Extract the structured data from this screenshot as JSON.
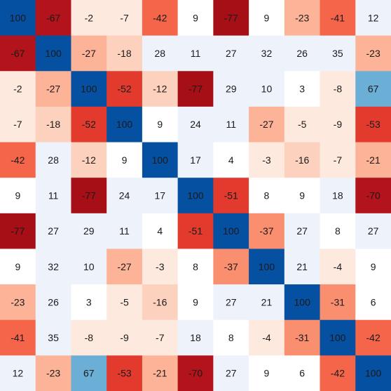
{
  "chart_data": {
    "type": "heatmap",
    "title": "",
    "xlabel": "",
    "ylabel": "",
    "value_range": [
      -100,
      100
    ],
    "colormap": "RdBu",
    "values": [
      [
        100,
        -67,
        -2,
        -7,
        -42,
        9,
        -77,
        9,
        -23,
        -41,
        12
      ],
      [
        -67,
        100,
        -27,
        -18,
        28,
        11,
        27,
        32,
        26,
        35,
        -23
      ],
      [
        -2,
        -27,
        100,
        -52,
        -12,
        -77,
        29,
        10,
        3,
        -8,
        67
      ],
      [
        -7,
        -18,
        -52,
        100,
        9,
        24,
        11,
        -27,
        -5,
        -9,
        -53
      ],
      [
        -42,
        28,
        -12,
        9,
        100,
        17,
        4,
        -3,
        -16,
        -7,
        -21
      ],
      [
        9,
        11,
        -77,
        24,
        17,
        100,
        -51,
        8,
        9,
        18,
        -70
      ],
      [
        -77,
        27,
        29,
        11,
        4,
        -51,
        100,
        -37,
        27,
        8,
        27
      ],
      [
        9,
        32,
        10,
        -27,
        -3,
        8,
        -37,
        100,
        21,
        -4,
        9
      ],
      [
        -23,
        26,
        3,
        -5,
        -16,
        9,
        27,
        21,
        100,
        -31,
        6
      ],
      [
        -41,
        35,
        -8,
        -9,
        -7,
        18,
        8,
        -4,
        -31,
        100,
        -42
      ],
      [
        12,
        -23,
        67,
        -53,
        -21,
        -70,
        27,
        9,
        6,
        -42,
        100
      ]
    ]
  }
}
